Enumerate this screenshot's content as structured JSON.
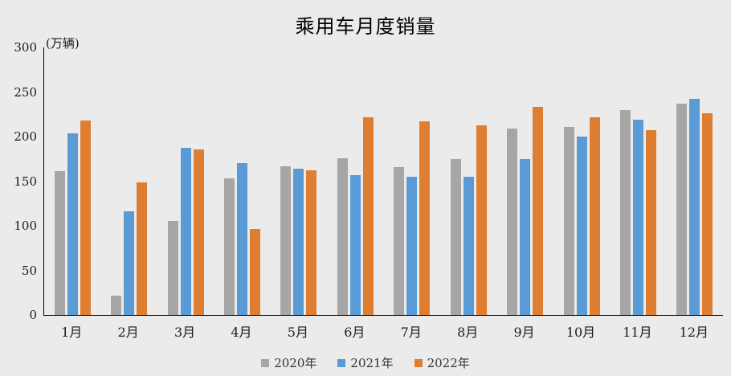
{
  "title": "乘用车月度销量",
  "unit_label": "(万辆)",
  "colors": {
    "background": "#EBEBEB",
    "axis": "#000000",
    "series_2020": "#A6A6A6",
    "series_2021": "#5B9BD5",
    "series_2022": "#DE7E32"
  },
  "chart_data": {
    "type": "bar",
    "title": "乘用车月度销量",
    "ylabel": "(万辆)",
    "ylim": [
      0,
      300
    ],
    "yticks": [
      0,
      50,
      100,
      150,
      200,
      250,
      300
    ],
    "grid": false,
    "legend_position": "bottom",
    "categories": [
      "1月",
      "2月",
      "3月",
      "4月",
      "5月",
      "6月",
      "7月",
      "8月",
      "9月",
      "10月",
      "11月",
      "12月"
    ],
    "series": [
      {
        "name": "2020年",
        "color": "#A6A6A6",
        "values": [
          161,
          22,
          105,
          153,
          167,
          176,
          166,
          175,
          209,
          211,
          230,
          237
        ]
      },
      {
        "name": "2021年",
        "color": "#5B9BD5",
        "values": [
          204,
          116,
          187,
          170,
          164,
          157,
          155,
          155,
          175,
          200,
          219,
          242
        ]
      },
      {
        "name": "2022年",
        "color": "#DE7E32",
        "values": [
          218,
          149,
          186,
          96,
          162,
          222,
          217,
          213,
          233,
          222,
          207,
          226
        ]
      }
    ]
  }
}
